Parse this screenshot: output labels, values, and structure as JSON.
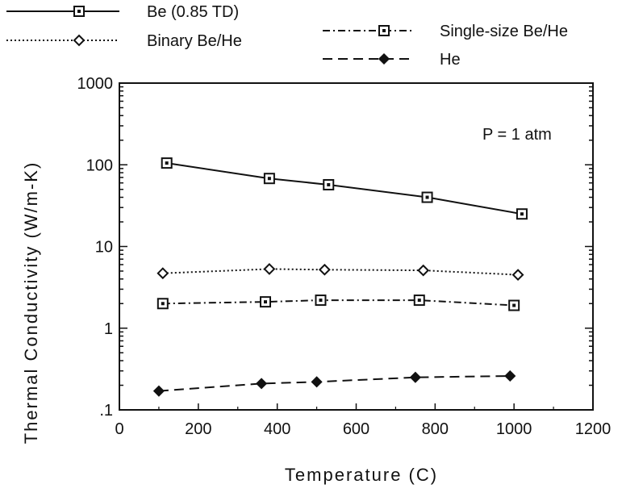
{
  "chart_data": {
    "type": "line",
    "title": "",
    "xlabel": "Temperature (C)",
    "ylabel": "Thermal Conductivity (W/m-K)",
    "xlim": [
      0,
      1200
    ],
    "ylim": [
      0.1,
      1000
    ],
    "yscale": "log",
    "grid": false,
    "legend_position": "top",
    "x_ticks": [
      {
        "value": 0,
        "label": "0"
      },
      {
        "value": 200,
        "label": "200"
      },
      {
        "value": 400,
        "label": "400"
      },
      {
        "value": 600,
        "label": "600"
      },
      {
        "value": 800,
        "label": "800"
      },
      {
        "value": 1000,
        "label": "1000"
      },
      {
        "value": 1200,
        "label": "1200"
      }
    ],
    "y_ticks": [
      {
        "value": 0.1,
        "label": ".1"
      },
      {
        "value": 1,
        "label": "1"
      },
      {
        "value": 10,
        "label": "10"
      },
      {
        "value": 100,
        "label": "100"
      },
      {
        "value": 1000,
        "label": "1000"
      }
    ],
    "annotation": "P = 1 atm",
    "series": [
      {
        "name": "Be (0.85 TD)",
        "marker": "square-dot",
        "line": "solid",
        "x": [
          120,
          380,
          530,
          780,
          1020
        ],
        "y": [
          105,
          68,
          57,
          40,
          25
        ]
      },
      {
        "name": "Binary Be/He",
        "marker": "diamond-open",
        "line": "dotted",
        "x": [
          110,
          380,
          520,
          770,
          1010
        ],
        "y": [
          4.7,
          5.3,
          5.2,
          5.1,
          4.5
        ]
      },
      {
        "name": "Single-size Be/He",
        "marker": "square-dot",
        "line": "dashdot",
        "x": [
          110,
          370,
          510,
          760,
          1000
        ],
        "y": [
          2.0,
          2.1,
          2.2,
          2.2,
          1.9
        ]
      },
      {
        "name": "He",
        "marker": "diamond-filled",
        "line": "dashed",
        "x": [
          100,
          360,
          500,
          750,
          990
        ],
        "y": [
          0.17,
          0.21,
          0.22,
          0.25,
          0.26
        ]
      }
    ]
  }
}
